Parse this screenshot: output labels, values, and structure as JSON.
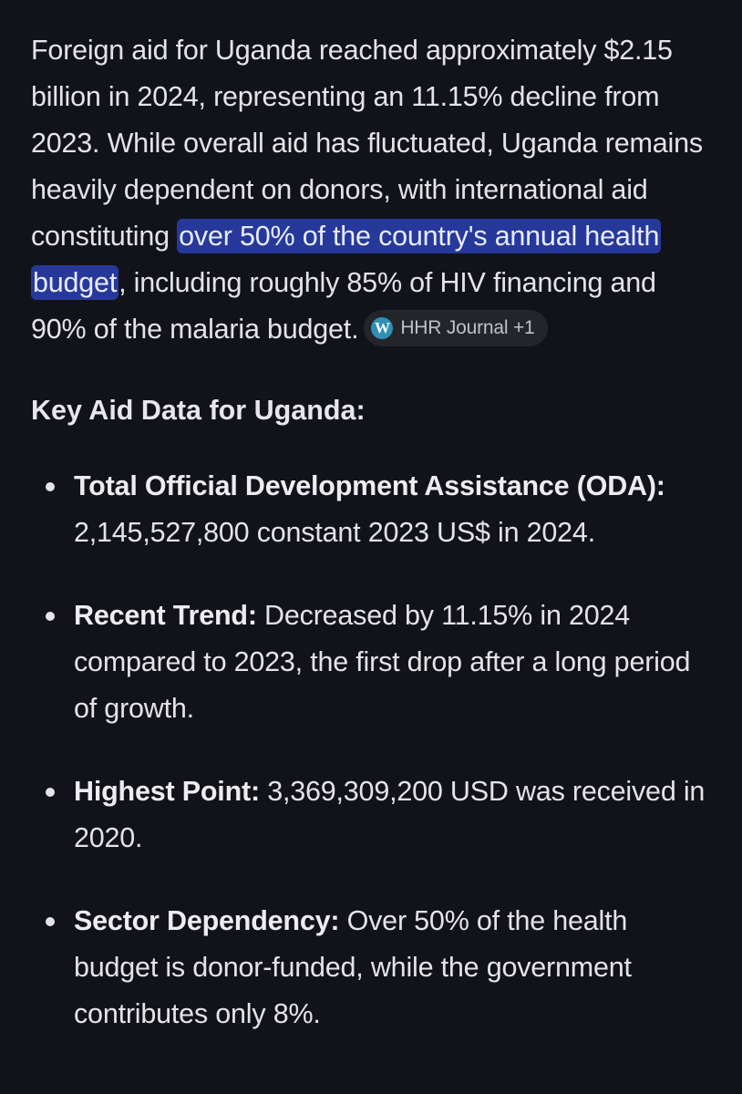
{
  "intro": {
    "text_before_highlight": "Foreign aid for Uganda reached approximately $2.15 billion in 2024, representing an 11.15% decline from 2023. While overall aid has fluctuated, Uganda remains heavily dependent on donors, with international aid constituting ",
    "highlight": "over 50% of the country's annual health budget",
    "text_after_highlight": ", including roughly 85% of HIV financing and 90% of the malaria budget.",
    "citation_chip": {
      "icon": "wordpress-icon",
      "label": "HHR Journal +1"
    }
  },
  "section_heading": "Key Aid Data for Uganda:",
  "facts": [
    {
      "label": "Total Official Development Assistance (ODA):",
      "text": " 2,145,527,800 constant 2023 US$ in 2024."
    },
    {
      "label": "Recent Trend:",
      "text": " Decreased by 11.15% in 2024 compared to 2023, the first drop after a long period of growth."
    },
    {
      "label": "Highest Point:",
      "text": " 3,369,309,200 USD was received in 2020."
    },
    {
      "label": "Sector Dependency:",
      "text": " Over 50% of the health budget is donor-funded, while the government contributes only 8%."
    }
  ],
  "colors": {
    "background": "#111318",
    "text": "#e3e3e8",
    "highlight": "#26399a",
    "chip_background": "#24252b"
  }
}
